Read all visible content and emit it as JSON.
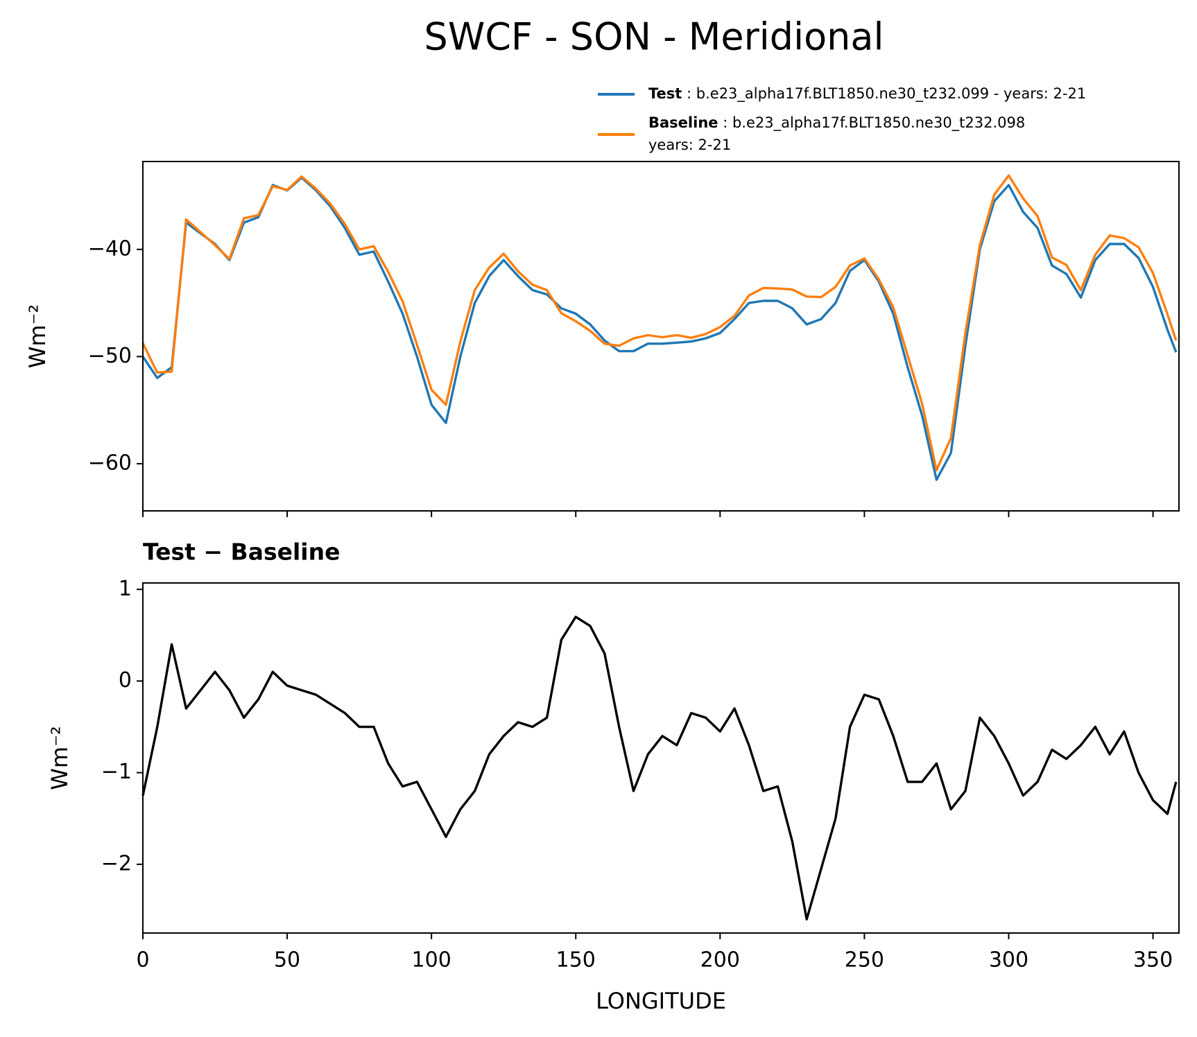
{
  "chart_data": [
    {
      "type": "line",
      "title": "SWCF - SON - Meridional",
      "ylabel": "Wm⁻²",
      "x": [
        0,
        5,
        10,
        15,
        20,
        25,
        30,
        35,
        40,
        45,
        50,
        55,
        60,
        65,
        70,
        75,
        80,
        85,
        90,
        95,
        100,
        105,
        110,
        115,
        120,
        125,
        130,
        135,
        140,
        145,
        150,
        155,
        160,
        165,
        170,
        175,
        180,
        185,
        190,
        195,
        200,
        205,
        210,
        215,
        220,
        225,
        230,
        235,
        240,
        245,
        250,
        255,
        260,
        265,
        270,
        275,
        280,
        285,
        290,
        295,
        300,
        305,
        310,
        315,
        320,
        325,
        330,
        335,
        340,
        345,
        350,
        355,
        358
      ],
      "series": [
        {
          "name": "Test",
          "description": [
            "b.e23_alpha17f.BLT1850.ne30_t232.099 - years: 2-21"
          ],
          "color": "#1f77b4",
          "values": [
            -50,
            -52,
            -51,
            -37.5,
            -38.5,
            -39.5,
            -41,
            -37.5,
            -37,
            -34,
            -34.5,
            -33.3,
            -34.5,
            -36,
            -38,
            -40.5,
            -40.2,
            -43,
            -46,
            -50,
            -54.5,
            -56.2,
            -50,
            -45,
            -42.5,
            -41,
            -42.5,
            -43.8,
            -44.2,
            -45.5,
            -46,
            -47,
            -48.5,
            -49.5,
            -49.5,
            -48.8,
            -48.8,
            -48.7,
            -48.6,
            -48.3,
            -47.8,
            -46.5,
            -45,
            -44.8,
            -44.8,
            -45.5,
            -47,
            -46.5,
            -45,
            -42,
            -41,
            -43,
            -46,
            -51,
            -55.5,
            -61.5,
            -59,
            -49,
            -40,
            -35.5,
            -34,
            -36.5,
            -38,
            -41.5,
            -42.3,
            -44.5,
            -41,
            -39.5,
            -39.5,
            -40.8,
            -43.5,
            -47.5,
            -49.6
          ]
        },
        {
          "name": "Baseline",
          "description": [
            "b.e23_alpha17f.BLT1850.ne30_t232.098",
            "years: 2-21"
          ],
          "color": "#ff7f0e",
          "values": [
            -48.75,
            -51.5,
            -51.4,
            -37.2,
            -38.4,
            -39.6,
            -40.9,
            -37.1,
            -36.8,
            -34.1,
            -34.45,
            -33.2,
            -34.35,
            -35.75,
            -37.65,
            -40,
            -39.7,
            -42.1,
            -44.85,
            -48.9,
            -53.1,
            -54.5,
            -48.6,
            -43.8,
            -41.7,
            -40.4,
            -42.05,
            -43.3,
            -43.8,
            -45.95,
            -46.7,
            -47.6,
            -48.8,
            -49,
            -48.3,
            -48,
            -48.2,
            -48,
            -48.25,
            -47.9,
            -47.25,
            -46.2,
            -44.3,
            -43.6,
            -43.65,
            -43.75,
            -44.4,
            -44.45,
            -43.5,
            -41.5,
            -40.85,
            -42.8,
            -45.4,
            -49.9,
            -54.4,
            -60.6,
            -57.6,
            -47.8,
            -39.6,
            -34.9,
            -33.1,
            -35.25,
            -36.9,
            -40.75,
            -41.45,
            -43.8,
            -40.5,
            -38.7,
            -38.95,
            -39.8,
            -42.2,
            -46.05,
            -48.5
          ]
        }
      ],
      "xlim": [
        0,
        359
      ],
      "ylim": [
        -64.4,
        -31.8
      ],
      "xticks": [
        0,
        50,
        100,
        150,
        200,
        250,
        300,
        350
      ],
      "yticks": [
        {
          "value": -60,
          "label": "−60"
        },
        {
          "value": -50,
          "label": "−50"
        },
        {
          "value": -40,
          "label": "−40"
        }
      ]
    },
    {
      "type": "line",
      "title": "Test − Baseline",
      "xlabel": "LONGITUDE",
      "ylabel": "Wm⁻²",
      "x": [
        0,
        5,
        10,
        15,
        20,
        25,
        30,
        35,
        40,
        45,
        50,
        55,
        60,
        65,
        70,
        75,
        80,
        85,
        90,
        95,
        100,
        105,
        110,
        115,
        120,
        125,
        130,
        135,
        140,
        145,
        150,
        155,
        160,
        165,
        170,
        175,
        180,
        185,
        190,
        195,
        200,
        205,
        210,
        215,
        220,
        225,
        230,
        235,
        240,
        245,
        250,
        255,
        260,
        265,
        270,
        275,
        280,
        285,
        290,
        295,
        300,
        305,
        310,
        315,
        320,
        325,
        330,
        335,
        340,
        345,
        350,
        355,
        358
      ],
      "series": [
        {
          "color": "#000000",
          "values": [
            -1.25,
            -0.5,
            0.4,
            -0.3,
            -0.1,
            0.1,
            -0.1,
            -0.4,
            -0.2,
            0.1,
            -0.05,
            -0.1,
            -0.15,
            -0.25,
            -0.35,
            -0.5,
            -0.5,
            -0.9,
            -1.15,
            -1.1,
            -1.4,
            -1.7,
            -1.4,
            -1.2,
            -0.8,
            -0.6,
            -0.45,
            -0.5,
            -0.4,
            0.45,
            0.7,
            0.6,
            0.3,
            -0.5,
            -1.2,
            -0.8,
            -0.6,
            -0.7,
            -0.35,
            -0.4,
            -0.55,
            -0.3,
            -0.7,
            -1.2,
            -1.15,
            -1.75,
            -2.6,
            -2.05,
            -1.5,
            -0.5,
            -0.15,
            -0.2,
            -0.6,
            -1.1,
            -1.1,
            -0.9,
            -1.4,
            -1.2,
            -0.4,
            -0.6,
            -0.9,
            -1.25,
            -1.1,
            -0.75,
            -0.85,
            -0.7,
            -0.5,
            -0.8,
            -0.55,
            -1.0,
            -1.3,
            -1.45,
            -1.1
          ]
        }
      ],
      "xlim": [
        0,
        359
      ],
      "ylim": [
        -2.75,
        1.07
      ],
      "xticks": [
        0,
        50,
        100,
        150,
        200,
        250,
        300,
        350
      ],
      "yticks": [
        {
          "value": -2,
          "label": "−2"
        },
        {
          "value": -1,
          "label": "−1"
        },
        0,
        1
      ]
    }
  ]
}
